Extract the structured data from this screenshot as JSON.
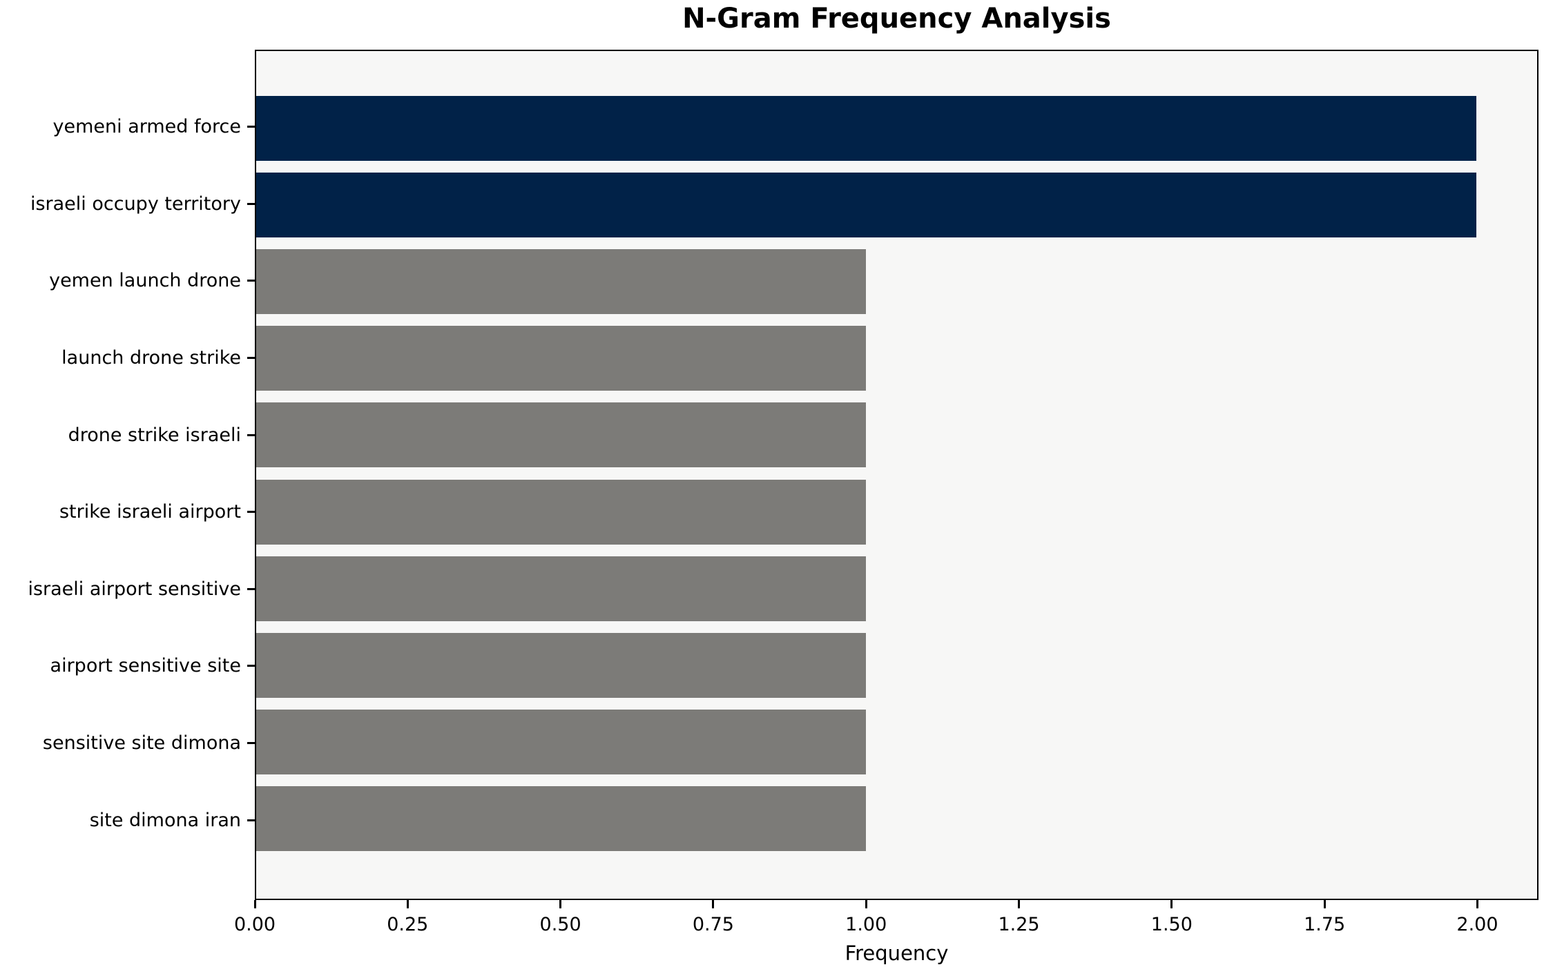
{
  "title": "N-Gram Frequency Analysis",
  "colors": {
    "highlight_bar": "#012248",
    "default_bar": "#7c7b78",
    "plot_background": "#f7f7f6",
    "spine": "#000000",
    "figure_background": "#ffffff"
  },
  "chart_data": {
    "type": "bar",
    "orientation": "horizontal",
    "title": "N-Gram Frequency Analysis",
    "xlabel": "Frequency",
    "ylabel": "",
    "categories": [
      "yemeni armed force",
      "israeli occupy territory",
      "yemen launch drone",
      "launch drone strike",
      "drone strike israeli",
      "strike israeli airport",
      "israeli airport sensitive",
      "airport sensitive site",
      "sensitive site dimona",
      "site dimona iran"
    ],
    "values": [
      2,
      2,
      1,
      1,
      1,
      1,
      1,
      1,
      1,
      1
    ],
    "bar_colors": [
      "#012248",
      "#012248",
      "#7c7b78",
      "#7c7b78",
      "#7c7b78",
      "#7c7b78",
      "#7c7b78",
      "#7c7b78",
      "#7c7b78",
      "#7c7b78"
    ],
    "xlim": [
      0,
      2.1
    ],
    "xticks": [
      "0.00",
      "0.25",
      "0.50",
      "0.75",
      "1.00",
      "1.25",
      "1.50",
      "1.75",
      "2.00"
    ],
    "grid": false,
    "legend": null
  }
}
